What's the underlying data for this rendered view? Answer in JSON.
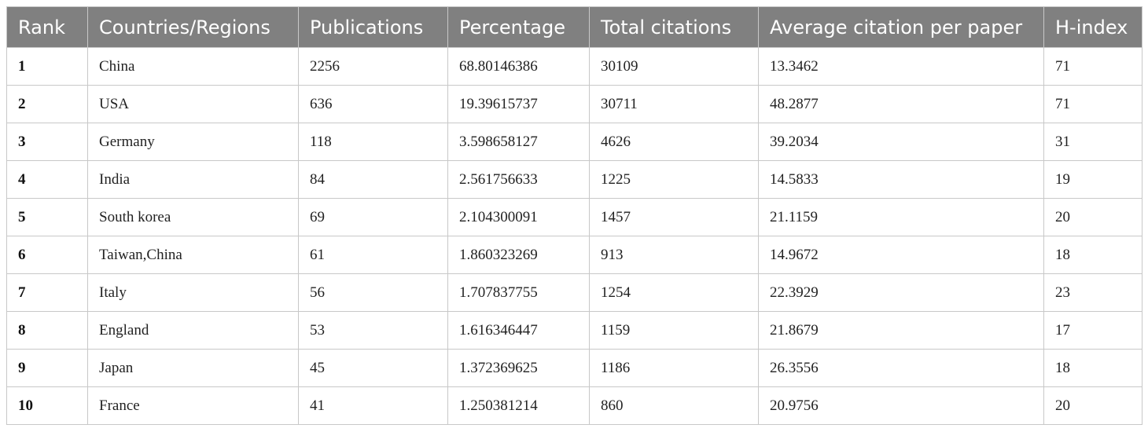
{
  "table": {
    "headers": [
      "Rank",
      "Countries/Regions",
      "Publications",
      "Percentage",
      "Total citations",
      "Average citation per paper",
      "H-index"
    ],
    "rows": [
      [
        "1",
        "China",
        "2256",
        "68.80146386",
        "30109",
        "13.3462",
        "71"
      ],
      [
        "2",
        "USA",
        "636",
        "19.39615737",
        "30711",
        "48.2877",
        "71"
      ],
      [
        "3",
        "Germany",
        "118",
        "3.598658127",
        "4626",
        "39.2034",
        "31"
      ],
      [
        "4",
        "India",
        "84",
        "2.561756633",
        "1225",
        "14.5833",
        "19"
      ],
      [
        "5",
        "South korea",
        "69",
        "2.104300091",
        "1457",
        "21.1159",
        "20"
      ],
      [
        "6",
        "Taiwan,China",
        "61",
        "1.860323269",
        "913",
        "14.9672",
        "18"
      ],
      [
        "7",
        "Italy",
        "56",
        "1.707837755",
        "1254",
        "22.3929",
        "23"
      ],
      [
        "8",
        "England",
        "53",
        "1.616346447",
        "1159",
        "21.8679",
        "17"
      ],
      [
        "9",
        "Japan",
        "45",
        "1.372369625",
        "1186",
        "26.3556",
        "18"
      ],
      [
        "10",
        "France",
        "41",
        "1.250381214",
        "860",
        "20.9756",
        "20"
      ]
    ]
  }
}
